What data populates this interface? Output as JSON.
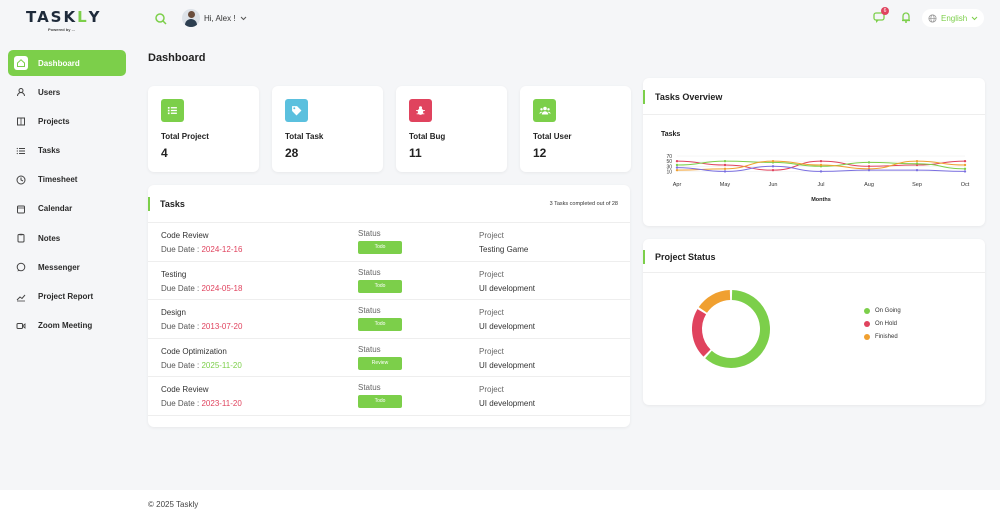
{
  "brand": {
    "logo_text_a": "TASK",
    "logo_text_b": "L",
    "logo_text_c": "Y",
    "logo_sub": "Powered by ...",
    "accent_color": "#7ccf4a"
  },
  "header": {
    "greeting": "Hi, Alex !",
    "notification_count": "6",
    "language": "English"
  },
  "sidebar": {
    "items": [
      {
        "label": "Dashboard",
        "icon": "home-icon",
        "active": true
      },
      {
        "label": "Users",
        "icon": "user-icon"
      },
      {
        "label": "Projects",
        "icon": "building-icon"
      },
      {
        "label": "Tasks",
        "icon": "list-icon"
      },
      {
        "label": "Timesheet",
        "icon": "clock-icon"
      },
      {
        "label": "Calendar",
        "icon": "calendar-icon"
      },
      {
        "label": "Notes",
        "icon": "clipboard-icon"
      },
      {
        "label": "Messenger",
        "icon": "chat-icon"
      },
      {
        "label": "Project Report",
        "icon": "chart-icon"
      },
      {
        "label": "Zoom Meeting",
        "icon": "video-icon"
      }
    ]
  },
  "page": {
    "title": "Dashboard"
  },
  "stats": [
    {
      "label": "Total Project",
      "value": "4",
      "color": "#7ccf4a",
      "icon": "list-icon"
    },
    {
      "label": "Total Task",
      "value": "28",
      "color": "#5bc0de",
      "icon": "tag-icon"
    },
    {
      "label": "Total Bug",
      "value": "11",
      "color": "#e0435e",
      "icon": "bug-icon"
    },
    {
      "label": "Total User",
      "value": "12",
      "color": "#7ccf4a",
      "icon": "users-icon"
    }
  ],
  "tasks": {
    "title": "Tasks",
    "summary": "3 Tasks completed out of 28",
    "status_label": "Status",
    "project_label": "Project",
    "due_label": "Due Date : ",
    "rows": [
      {
        "name": "Code Review",
        "due": "2024-12-16",
        "status": "Todo",
        "project": "Testing Game"
      },
      {
        "name": "Testing",
        "due": "2024-05-18",
        "status": "Todo",
        "project": "UI development"
      },
      {
        "name": "Design",
        "due": "2013-07-20",
        "status": "Todo",
        "project": "UI development"
      },
      {
        "name": "Code Optimization",
        "due": "2025-11-20",
        "status": "Review",
        "project": "UI development"
      },
      {
        "name": "Code Review",
        "due": "2023-11-20",
        "status": "Todo",
        "project": "UI development"
      }
    ]
  },
  "overview": {
    "title": "Tasks Overview",
    "chart_data": {
      "type": "line",
      "title": "Tasks",
      "xlabel": "Months",
      "categories": [
        "Apr",
        "May",
        "Jun",
        "Jul",
        "Aug",
        "Sep",
        "Oct"
      ],
      "yticks": [
        10,
        30,
        50,
        70
      ],
      "ylim": [
        0,
        70
      ],
      "series": [
        {
          "values": [
            50,
            35,
            15,
            50,
            30,
            35,
            50
          ],
          "color": "#e0435e"
        },
        {
          "values": [
            35,
            50,
            45,
            30,
            45,
            40,
            20
          ],
          "color": "#7ccf4a"
        },
        {
          "values": [
            15,
            20,
            50,
            35,
            20,
            50,
            35
          ],
          "color": "#f0a030"
        },
        {
          "values": [
            25,
            10,
            30,
            10,
            15,
            15,
            10
          ],
          "color": "#7a6fe0"
        }
      ]
    }
  },
  "project_status": {
    "title": "Project Status",
    "chart_data": {
      "type": "pie",
      "categories": [
        "On Going",
        "On Hold",
        "Finished"
      ],
      "values": [
        62,
        22,
        16
      ],
      "colors": [
        "#7ccf4a",
        "#e0435e",
        "#f0a030"
      ]
    }
  },
  "footer": {
    "text": "© 2025 Taskly"
  }
}
